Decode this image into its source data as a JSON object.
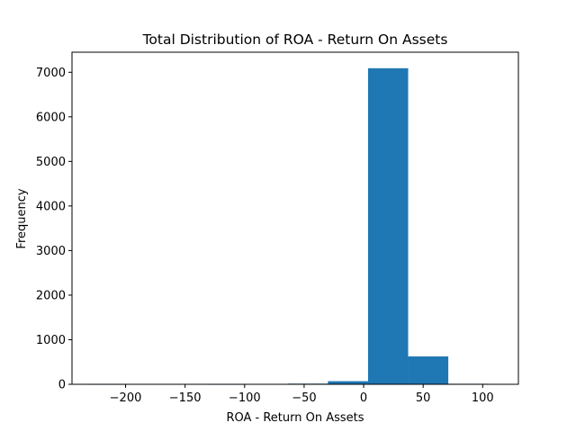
{
  "chart_data": {
    "type": "bar",
    "title": "Total Distribution of ROA - Return On Assets",
    "xlabel": "ROA - Return On Assets",
    "ylabel": "Frequency",
    "bin_edges": [
      -232.3,
      -198.6,
      -164.9,
      -131.1,
      -97.4,
      -63.7,
      -30.0,
      3.7,
      37.4,
      71.1,
      104.8
    ],
    "bin_edges_display": [
      -232.3,
      -198.6,
      -164.9,
      -131.1,
      -97.4,
      -63.7,
      -30.0,
      3.7,
      37.4,
      71.1,
      104.8
    ],
    "counts": [
      1,
      0,
      0,
      1,
      2,
      15,
      70,
      7090,
      625,
      12
    ],
    "xlim": [
      -245,
      130
    ],
    "ylim": [
      0,
      7450
    ],
    "xticks": [
      -200,
      -150,
      -100,
      -50,
      0,
      50,
      100
    ],
    "xtick_labels": [
      "−200",
      "−150",
      "−100",
      "−50",
      "0",
      "50",
      "100"
    ],
    "yticks": [
      0,
      1000,
      2000,
      3000,
      4000,
      5000,
      6000,
      7000
    ],
    "ytick_labels": [
      "0",
      "1000",
      "2000",
      "3000",
      "4000",
      "5000",
      "6000",
      "7000"
    ],
    "bar_color": "#1f77b4",
    "grid": false,
    "legend": "none"
  }
}
